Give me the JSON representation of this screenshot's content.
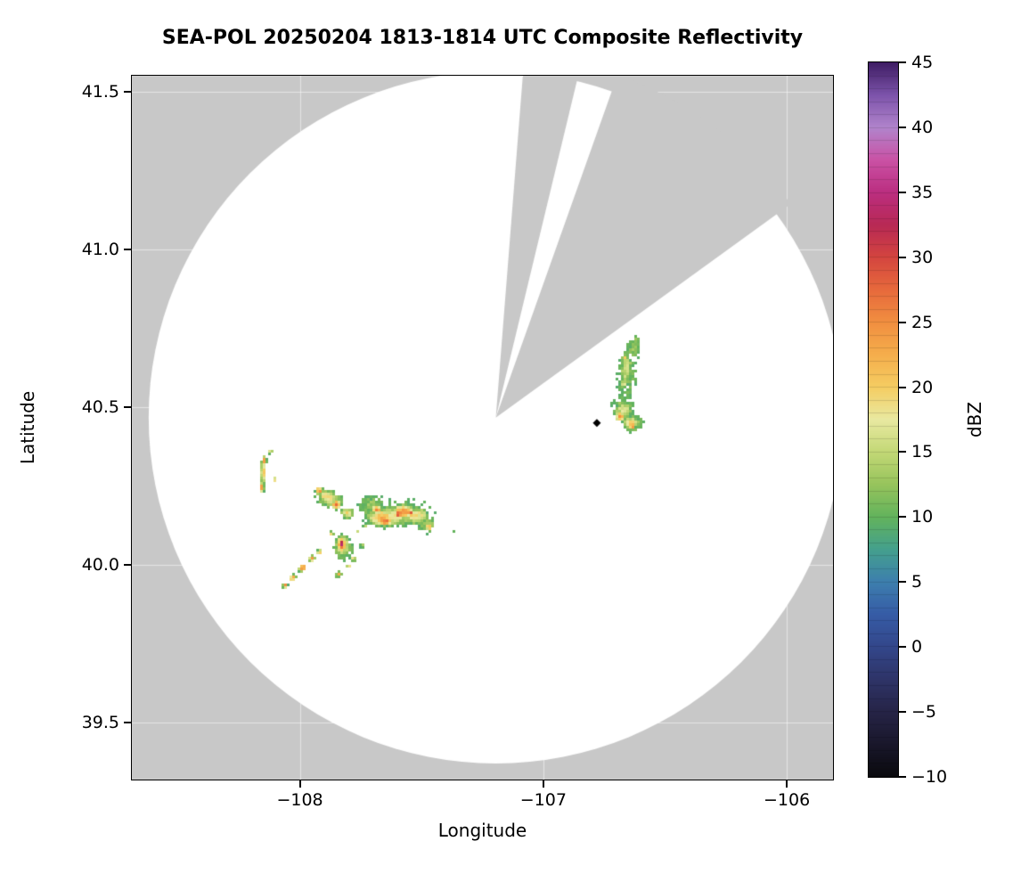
{
  "chart_data": {
    "type": "heatmap",
    "title": "SEA-POL 20250204 1813-1814 UTC Composite Reflectivity",
    "xlabel": "Longitude",
    "ylabel": "Latitude",
    "xlim": [
      -108.69,
      -105.81
    ],
    "ylim": [
      39.32,
      41.55
    ],
    "grid": false,
    "xticks": {
      "values": [
        -108,
        -107,
        -106
      ],
      "labels": [
        "−108",
        "−107",
        "−106"
      ]
    },
    "yticks": {
      "values": [
        39.5,
        40.0,
        40.5,
        41.0,
        41.5
      ],
      "labels": [
        "39.5",
        "40.0",
        "40.5",
        "41.0",
        "41.5"
      ]
    },
    "colorbar": {
      "label": "dBZ",
      "range": [
        -10,
        45
      ],
      "tick_values": [
        45,
        40,
        35,
        30,
        25,
        20,
        15,
        10,
        5,
        0,
        -5,
        -10
      ],
      "tick_labels": [
        "45",
        "40",
        "35",
        "30",
        "25",
        "20",
        "15",
        "10",
        "5",
        "0",
        "−5",
        "−10"
      ],
      "colormap_stops": [
        [
          -10,
          "#0a0a0e"
        ],
        [
          -7.5,
          "#19172b"
        ],
        [
          -5,
          "#262447"
        ],
        [
          -2.5,
          "#2e3468"
        ],
        [
          0,
          "#33478b"
        ],
        [
          2.5,
          "#365ca6"
        ],
        [
          5,
          "#3d7fae"
        ],
        [
          7.5,
          "#44a08d"
        ],
        [
          10,
          "#63b35c"
        ],
        [
          12.5,
          "#97c45c"
        ],
        [
          15,
          "#c3d876"
        ],
        [
          17.5,
          "#e9e9a1"
        ],
        [
          20,
          "#f5cd62"
        ],
        [
          22.5,
          "#f5ae4c"
        ],
        [
          25,
          "#f18f40"
        ],
        [
          27.5,
          "#e76a3c"
        ],
        [
          30,
          "#d4453f"
        ],
        [
          32.5,
          "#b82955"
        ],
        [
          35,
          "#bb2e80"
        ],
        [
          37.5,
          "#ca52a5"
        ],
        [
          40,
          "#b184cc"
        ],
        [
          42.5,
          "#7d54ab"
        ],
        [
          45,
          "#3f1d64"
        ]
      ]
    },
    "radar": {
      "background_color": "#c8c8c8",
      "coverage_color": "#ffffff",
      "coverage_center_lonlat": [
        -107.195,
        40.467
      ],
      "coverage_radius_deg": {
        "lon": 1.426,
        "lat": 1.096
      },
      "blocked_sector_azimuths_deg": [
        [
          4.5,
          14.0
        ],
        [
          19.5,
          54.0
        ]
      ],
      "site_marker": {
        "lonlat": [
          -106.78,
          40.45
        ],
        "shape": "diamond",
        "color": "#000000"
      }
    },
    "echo_regions": [
      {
        "lon": -107.6,
        "lat": 40.165,
        "rx": 0.165,
        "ry": 0.055,
        "dbz": 11,
        "rot": -5
      },
      {
        "lon": -107.7,
        "lat": 40.185,
        "rx": 0.075,
        "ry": 0.038,
        "dbz": 13,
        "rot": 0
      },
      {
        "lon": -107.62,
        "lat": 40.155,
        "rx": 0.12,
        "ry": 0.042,
        "dbz": 17,
        "rot": -5
      },
      {
        "lon": -107.52,
        "lat": 40.155,
        "rx": 0.06,
        "ry": 0.032,
        "dbz": 19,
        "rot": 0
      },
      {
        "lon": -107.66,
        "lat": 40.15,
        "rx": 0.075,
        "ry": 0.03,
        "dbz": 23,
        "rot": 0
      },
      {
        "lon": -107.575,
        "lat": 40.17,
        "rx": 0.05,
        "ry": 0.026,
        "dbz": 25,
        "rot": 0
      },
      {
        "lon": -107.65,
        "lat": 40.14,
        "rx": 0.034,
        "ry": 0.02,
        "dbz": 28,
        "rot": 0
      },
      {
        "lon": -107.595,
        "lat": 40.16,
        "rx": 0.024,
        "ry": 0.017,
        "dbz": 30,
        "rot": 0
      },
      {
        "lon": -107.545,
        "lat": 40.165,
        "rx": 0.02,
        "ry": 0.014,
        "dbz": 28,
        "rot": 0
      },
      {
        "lon": -107.685,
        "lat": 40.175,
        "rx": 0.022,
        "ry": 0.015,
        "dbz": 27,
        "rot": 0
      },
      {
        "lon": -107.475,
        "lat": 40.125,
        "rx": 0.045,
        "ry": 0.03,
        "dbz": 13,
        "rot": -20
      },
      {
        "lon": -107.47,
        "lat": 40.12,
        "rx": 0.015,
        "ry": 0.012,
        "dbz": 24,
        "rot": 0
      },
      {
        "lon": -107.37,
        "lat": 40.105,
        "rx": 0.01,
        "ry": 0.008,
        "dbz": 12,
        "rot": 0
      },
      {
        "lon": -107.88,
        "lat": 40.21,
        "rx": 0.07,
        "ry": 0.033,
        "dbz": 15,
        "rot": 25
      },
      {
        "lon": -107.885,
        "lat": 40.215,
        "rx": 0.048,
        "ry": 0.022,
        "dbz": 21,
        "rot": 25
      },
      {
        "lon": -107.92,
        "lat": 40.235,
        "rx": 0.02,
        "ry": 0.014,
        "dbz": 25,
        "rot": 0
      },
      {
        "lon": -107.85,
        "lat": 40.19,
        "rx": 0.024,
        "ry": 0.017,
        "dbz": 27,
        "rot": 0
      },
      {
        "lon": -107.805,
        "lat": 40.165,
        "rx": 0.03,
        "ry": 0.02,
        "dbz": 19,
        "rot": 0
      },
      {
        "lon": -108.15,
        "lat": 40.295,
        "rx": 0.013,
        "ry": 0.05,
        "dbz": 21,
        "rot": 0
      },
      {
        "lon": -108.145,
        "lat": 40.33,
        "rx": 0.011,
        "ry": 0.018,
        "dbz": 26,
        "rot": 0
      },
      {
        "lon": -108.155,
        "lat": 40.245,
        "rx": 0.011,
        "ry": 0.022,
        "dbz": 25,
        "rot": 0
      },
      {
        "lon": -108.12,
        "lat": 40.36,
        "rx": 0.011,
        "ry": 0.011,
        "dbz": 18,
        "rot": 0
      },
      {
        "lon": -108.1,
        "lat": 40.27,
        "rx": 0.009,
        "ry": 0.012,
        "dbz": 20,
        "rot": 0
      },
      {
        "lon": -107.82,
        "lat": 40.055,
        "rx": 0.05,
        "ry": 0.052,
        "dbz": 13,
        "rot": 0
      },
      {
        "lon": -107.825,
        "lat": 40.06,
        "rx": 0.036,
        "ry": 0.04,
        "dbz": 19,
        "rot": 0
      },
      {
        "lon": -107.83,
        "lat": 40.065,
        "rx": 0.026,
        "ry": 0.03,
        "dbz": 25,
        "rot": 0
      },
      {
        "lon": -107.827,
        "lat": 40.062,
        "rx": 0.018,
        "ry": 0.023,
        "dbz": 30,
        "rot": 0
      },
      {
        "lon": -107.83,
        "lat": 40.066,
        "rx": 0.012,
        "ry": 0.015,
        "dbz": 34,
        "rot": 0
      },
      {
        "lon": -107.828,
        "lat": 40.069,
        "rx": 0.008,
        "ry": 0.009,
        "dbz": 37,
        "rot": 0
      },
      {
        "lon": -108.03,
        "lat": 39.96,
        "rx": 0.02,
        "ry": 0.011,
        "dbz": 25,
        "rot": -40
      },
      {
        "lon": -107.99,
        "lat": 39.99,
        "rx": 0.022,
        "ry": 0.012,
        "dbz": 27,
        "rot": -40
      },
      {
        "lon": -107.95,
        "lat": 40.02,
        "rx": 0.018,
        "ry": 0.01,
        "dbz": 24,
        "rot": -40
      },
      {
        "lon": -108.06,
        "lat": 39.935,
        "rx": 0.014,
        "ry": 0.009,
        "dbz": 26,
        "rot": -40
      },
      {
        "lon": -107.92,
        "lat": 40.04,
        "rx": 0.016,
        "ry": 0.01,
        "dbz": 22,
        "rot": -40
      },
      {
        "lon": -107.84,
        "lat": 39.97,
        "rx": 0.016,
        "ry": 0.009,
        "dbz": 24,
        "rot": -40
      },
      {
        "lon": -107.8,
        "lat": 39.995,
        "rx": 0.012,
        "ry": 0.008,
        "dbz": 21,
        "rot": 0
      },
      {
        "lon": -107.78,
        "lat": 40.02,
        "rx": 0.016,
        "ry": 0.01,
        "dbz": 18,
        "rot": 0
      },
      {
        "lon": -107.745,
        "lat": 40.06,
        "rx": 0.012,
        "ry": 0.009,
        "dbz": 16,
        "rot": 0
      },
      {
        "lon": -107.87,
        "lat": 40.1,
        "rx": 0.012,
        "ry": 0.009,
        "dbz": 20,
        "rot": 0
      },
      {
        "lon": -107.76,
        "lat": 40.105,
        "rx": 0.01,
        "ry": 0.008,
        "dbz": 15,
        "rot": 0
      },
      {
        "lon": -107.73,
        "lat": 40.125,
        "rx": 0.012,
        "ry": 0.008,
        "dbz": 17,
        "rot": 0
      },
      {
        "lon": -106.655,
        "lat": 40.6,
        "rx": 0.048,
        "ry": 0.095,
        "dbz": 11,
        "rot": 5
      },
      {
        "lon": -106.63,
        "lat": 40.685,
        "rx": 0.034,
        "ry": 0.042,
        "dbz": 12,
        "rot": 0
      },
      {
        "lon": -106.675,
        "lat": 40.5,
        "rx": 0.052,
        "ry": 0.048,
        "dbz": 12,
        "rot": 0
      },
      {
        "lon": -106.63,
        "lat": 40.45,
        "rx": 0.055,
        "ry": 0.034,
        "dbz": 13,
        "rot": 0
      },
      {
        "lon": -106.66,
        "lat": 40.62,
        "rx": 0.028,
        "ry": 0.07,
        "dbz": 16,
        "rot": 5
      },
      {
        "lon": -106.67,
        "lat": 40.49,
        "rx": 0.04,
        "ry": 0.028,
        "dbz": 18,
        "rot": 0
      },
      {
        "lon": -106.64,
        "lat": 40.45,
        "rx": 0.034,
        "ry": 0.021,
        "dbz": 21,
        "rot": 0
      },
      {
        "lon": -106.685,
        "lat": 40.47,
        "rx": 0.022,
        "ry": 0.017,
        "dbz": 25,
        "rot": 0
      },
      {
        "lon": -106.635,
        "lat": 40.44,
        "rx": 0.017,
        "ry": 0.013,
        "dbz": 26,
        "rot": 0
      },
      {
        "lon": -106.665,
        "lat": 40.655,
        "rx": 0.014,
        "ry": 0.011,
        "dbz": 22,
        "rot": 0
      },
      {
        "lon": -106.67,
        "lat": 40.575,
        "rx": 0.012,
        "ry": 0.01,
        "dbz": 21,
        "rot": 0
      },
      {
        "lon": -106.585,
        "lat": 40.455,
        "rx": 0.011,
        "ry": 0.009,
        "dbz": 12,
        "rot": 0
      },
      {
        "lon": -106.615,
        "lat": 40.715,
        "rx": 0.017,
        "ry": 0.013,
        "dbz": 12,
        "rot": 0
      }
    ]
  }
}
